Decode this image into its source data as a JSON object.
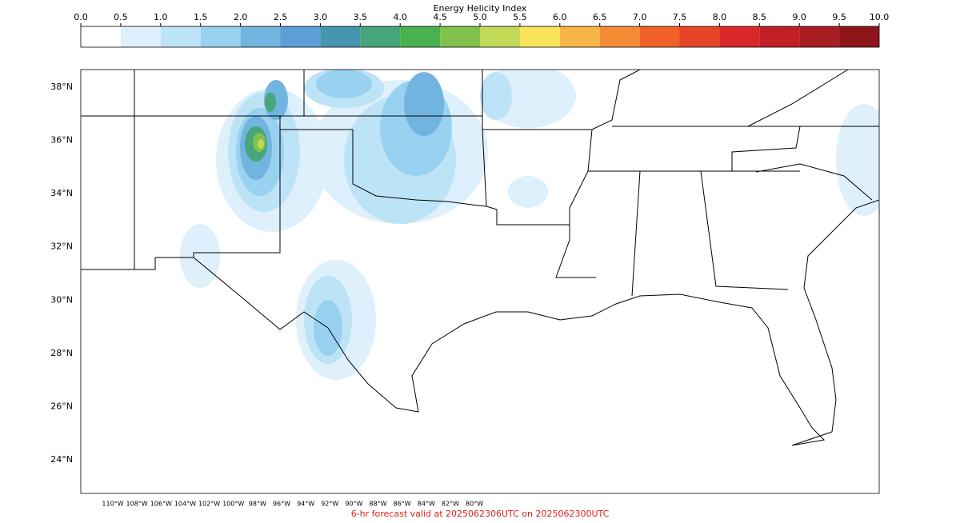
{
  "colorbar": {
    "title": "Energy Helicity Index",
    "ticks": [
      {
        "value": 0,
        "label": "0.0"
      },
      {
        "value": 0.5,
        "label": "0.5"
      },
      {
        "value": 1,
        "label": "1.0"
      },
      {
        "value": 1.5,
        "label": "1.5"
      },
      {
        "value": 2,
        "label": "2.0"
      },
      {
        "value": 2.5,
        "label": "2.5"
      },
      {
        "value": 3,
        "label": "3.0"
      },
      {
        "value": 3.5,
        "label": "3.5"
      },
      {
        "value": 4,
        "label": "4.0"
      },
      {
        "value": 4.5,
        "label": "4.5"
      },
      {
        "value": 5,
        "label": "5.0"
      },
      {
        "value": 5.5,
        "label": "5.5"
      },
      {
        "value": 6,
        "label": "6.0"
      },
      {
        "value": 6.5,
        "label": "6.5"
      },
      {
        "value": 7,
        "label": "7.0"
      },
      {
        "value": 7.5,
        "label": "7.5"
      },
      {
        "value": 8,
        "label": "8.0"
      },
      {
        "value": 8.5,
        "label": "8.5"
      },
      {
        "value": 9,
        "label": "9.0"
      },
      {
        "value": 9.5,
        "label": "9.5"
      },
      {
        "value": 10,
        "label": "10.0"
      }
    ],
    "colors": [
      "#ffffff",
      "#ddf0fb",
      "#bde3f6",
      "#98d2f0",
      "#72b4e0",
      "#5b9fd6",
      "#4694b0",
      "#46a57a",
      "#48b24e",
      "#80c24a",
      "#c2d857",
      "#fae55a",
      "#f8b648",
      "#f58c35",
      "#f26128",
      "#e64527",
      "#d9272a",
      "#c21f27",
      "#a81c24",
      "#8e161b"
    ]
  },
  "map": {
    "lat_labels": [
      {
        "value": 38,
        "label": "38°N"
      },
      {
        "value": 36,
        "label": "36°N"
      },
      {
        "value": 34,
        "label": "34°N"
      },
      {
        "value": 32,
        "label": "32°N"
      },
      {
        "value": 30,
        "label": "30°N"
      },
      {
        "value": 28,
        "label": "28°N"
      },
      {
        "value": 26,
        "label": "26°N"
      },
      {
        "value": 24,
        "label": "24°N"
      }
    ],
    "lon_labels": [
      {
        "value": -110,
        "label": "110°W"
      },
      {
        "value": -108,
        "label": "108°W"
      },
      {
        "value": -106,
        "label": "106°W"
      },
      {
        "value": -104,
        "label": "104°W"
      },
      {
        "value": -102,
        "label": "102°W"
      },
      {
        "value": -100,
        "label": "100°W"
      },
      {
        "value": -98,
        "label": "98°W"
      },
      {
        "value": -96,
        "label": "96°W"
      },
      {
        "value": -94,
        "label": "94°W"
      },
      {
        "value": -92,
        "label": "92°W"
      },
      {
        "value": -90,
        "label": "90°W"
      },
      {
        "value": -88,
        "label": "88°W"
      },
      {
        "value": -86,
        "label": "86°W"
      },
      {
        "value": -84,
        "label": "84°W"
      },
      {
        "value": -82,
        "label": "82°W"
      },
      {
        "value": -80,
        "label": "80°W"
      }
    ]
  },
  "footer": "6-hr forecast valid at 2025062306UTC on 2025062300UTC"
}
